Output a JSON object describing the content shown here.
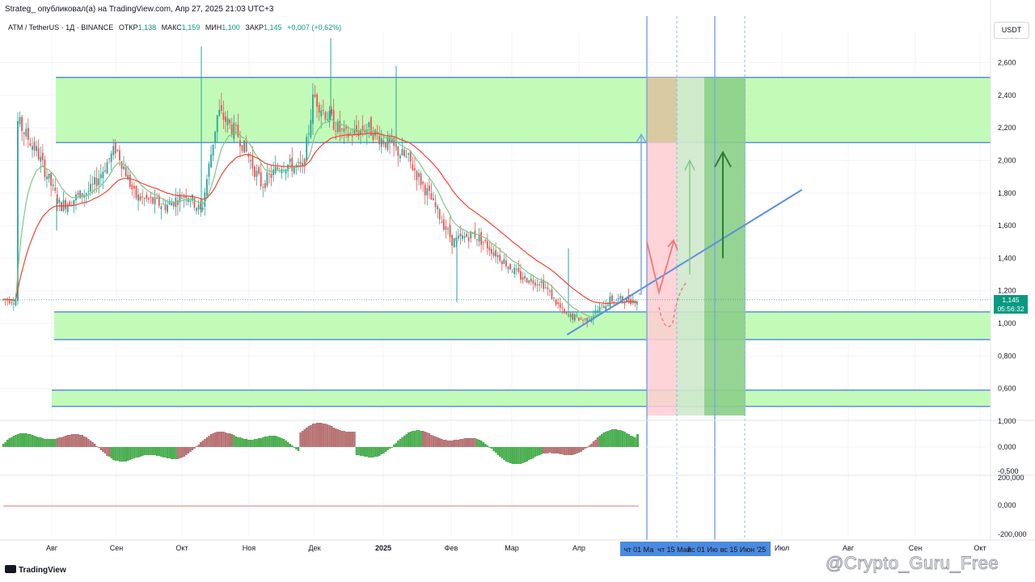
{
  "header": {
    "published_line": "Strateg_ опубликовал(а) на TradingView.com, Апр 27, 2025 21:03 UTC+3"
  },
  "legend": {
    "symbol": "ATM / TetherUS · 1Д · BINANCE",
    "open_label": "ОТКР",
    "open_value": "1,138",
    "high_label": "МАКС",
    "high_value": "1,159",
    "low_label": "МИН",
    "low_value": "1,100",
    "close_label": "ЗАКР",
    "close_value": "1,145",
    "change": "+0,007 (+0,62%)"
  },
  "price_scale": {
    "currency": "USDT",
    "current_price": "1,145",
    "countdown": "05:56:32"
  },
  "footer": {
    "logo_text": "TradingView",
    "watermark": "@Crypto_Guru_Free"
  },
  "colors": {
    "zone_green": "#c2fbb7",
    "zone_border": "#5b8fe0",
    "candle_up": "#26a69a",
    "candle_down": "#ef5350",
    "ema_red": "#f44336",
    "ema_green": "#81c784",
    "projection_red": "#ffcdd2",
    "projection_light_green": "#cfe8cc",
    "projection_green": "#8bcf88",
    "osc_green": "#4caf50",
    "osc_red": "#b87373",
    "accent": "#089981"
  },
  "chart_data": {
    "type": "candlestick",
    "symbol": "ATM / TetherUS",
    "timeframe": "1Д",
    "exchange": "BINANCE",
    "y_scale": {
      "min": 0.5,
      "max": 2.7,
      "ticks": [
        "2,600",
        "2,400",
        "2,200",
        "2,000",
        "1,800",
        "1,600",
        "1,400",
        "1,200",
        "1,000",
        "0,800",
        "0,600"
      ],
      "tick_values": [
        2.6,
        2.4,
        2.2,
        2.0,
        1.8,
        1.6,
        1.4,
        1.2,
        1.0,
        0.8,
        0.6
      ]
    },
    "x_axis_labels": [
      "Авг",
      "Сен",
      "Окт",
      "Ноя",
      "Дек",
      "2025",
      "Фев",
      "Мар",
      "Апр",
      "Июл",
      "Авг",
      "Сен",
      "Окт"
    ],
    "highlighted_dates": [
      "чт 01 Ма",
      "чт 15 Май",
      "вс 01 Ию",
      "вс 15 Июн '25"
    ],
    "price_path": [
      {
        "date": "2024-07-15",
        "close": 2.25
      },
      {
        "date": "2024-07-25",
        "close": 2.05
      },
      {
        "date": "2024-08-05",
        "close": 1.72
      },
      {
        "date": "2024-08-20",
        "close": 1.82
      },
      {
        "date": "2024-09-01",
        "close": 2.08
      },
      {
        "date": "2024-09-10",
        "close": 1.78
      },
      {
        "date": "2024-09-25",
        "close": 1.72
      },
      {
        "date": "2024-10-05",
        "close": 1.8
      },
      {
        "date": "2024-10-12",
        "close": 1.68
      },
      {
        "date": "2024-10-20",
        "close": 2.3
      },
      {
        "date": "2024-10-30",
        "close": 2.15
      },
      {
        "date": "2024-11-10",
        "close": 1.85
      },
      {
        "date": "2024-11-20",
        "close": 1.98
      },
      {
        "date": "2024-11-30",
        "close": 1.95
      },
      {
        "date": "2024-12-05",
        "close": 2.4
      },
      {
        "date": "2024-12-10",
        "close": 2.3
      },
      {
        "date": "2024-12-20",
        "close": 2.15
      },
      {
        "date": "2024-12-31",
        "close": 2.2
      },
      {
        "date": "2025-01-10",
        "close": 2.1
      },
      {
        "date": "2025-01-20",
        "close": 2.0
      },
      {
        "date": "2025-01-31",
        "close": 1.75
      },
      {
        "date": "2025-02-10",
        "close": 1.5
      },
      {
        "date": "2025-02-20",
        "close": 1.55
      },
      {
        "date": "2025-03-01",
        "close": 1.45
      },
      {
        "date": "2025-03-15",
        "close": 1.28
      },
      {
        "date": "2025-03-25",
        "close": 1.25
      },
      {
        "date": "2025-04-05",
        "close": 1.05
      },
      {
        "date": "2025-04-15",
        "close": 1.02
      },
      {
        "date": "2025-04-27",
        "close": 1.145
      }
    ],
    "last_candle": {
      "open": 1.138,
      "high": 1.159,
      "low": 1.1,
      "close": 1.145
    },
    "zones": [
      {
        "name": "resistance",
        "from": 2.11,
        "to": 2.51
      },
      {
        "name": "support",
        "from": 0.9,
        "to": 1.07
      },
      {
        "name": "lower_support",
        "from": 0.49,
        "to": 0.59
      }
    ],
    "trendline": [
      {
        "date": "2025-04-06",
        "price": 0.93
      },
      {
        "date": "2025-07-28",
        "price": 1.82
      }
    ],
    "oscillator": {
      "ticks": [
        "0,000",
        "-0,500"
      ],
      "lower_ticks": [
        "200,000",
        "0,000",
        "-200,000"
      ],
      "top_cut_label": "1,000"
    }
  }
}
